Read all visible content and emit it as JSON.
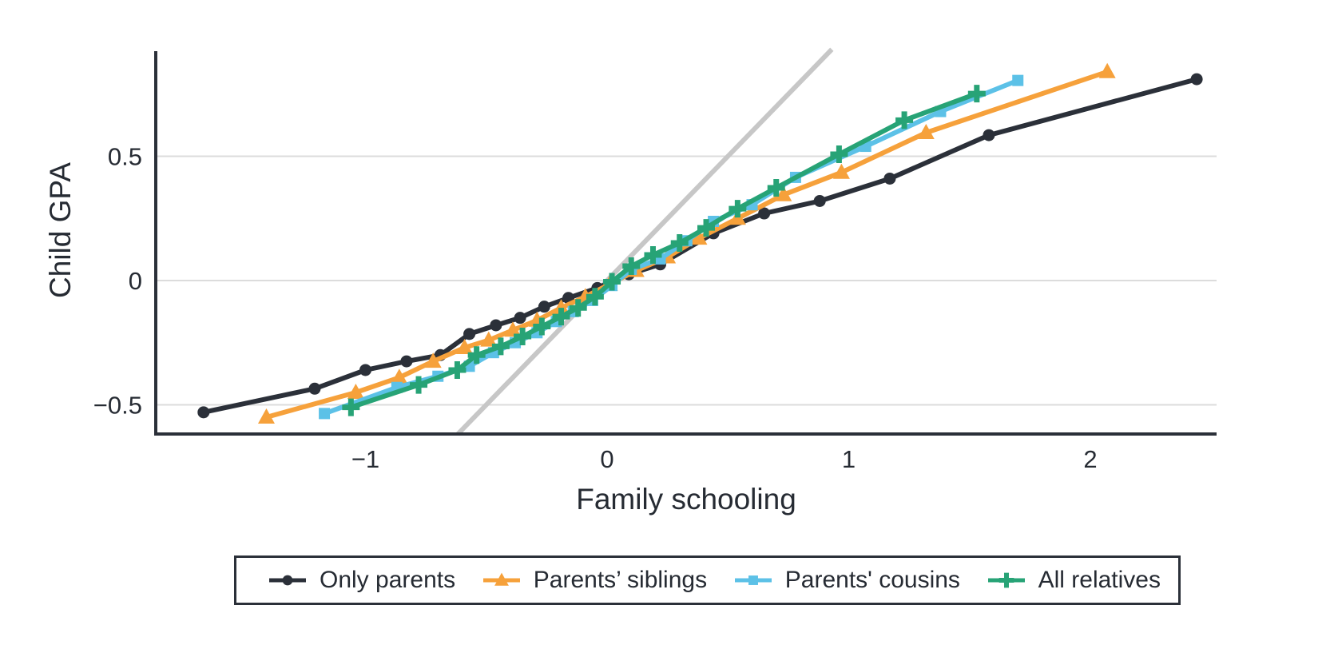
{
  "chart_data": {
    "type": "line",
    "title": "",
    "xlabel": "Family schooling",
    "ylabel": "Child GPA",
    "xlim": [
      -1.87,
      2.52
    ],
    "ylim": [
      -0.62,
      0.92
    ],
    "x_ticks": [
      -1,
      0,
      1,
      2
    ],
    "x_tick_labels": [
      "−1",
      "0",
      "1",
      "2"
    ],
    "y_ticks": [
      0.5,
      0,
      -0.5
    ],
    "y_tick_labels": [
      "0.5",
      "0",
      "−0.5"
    ],
    "grid": "horizontal-only",
    "legend_position": "bottom-outside",
    "colors": {
      "background": "#ffffff",
      "axis": "#2b3039",
      "text": "#262b33",
      "gridline": "#dcdcdc",
      "reference_line": "#c7c7c7"
    },
    "reference_line": {
      "name": "45-degree identity line",
      "from": [
        -0.618,
        -0.618
      ],
      "to": [
        0.93,
        0.93
      ]
    },
    "series": [
      {
        "name": "Only parents",
        "color": "#2b3039",
        "marker": "circle",
        "points": [
          [
            -1.67,
            -0.53
          ],
          [
            -1.21,
            -0.435
          ],
          [
            -1.0,
            -0.36
          ],
          [
            -0.83,
            -0.325
          ],
          [
            -0.69,
            -0.3
          ],
          [
            -0.57,
            -0.215
          ],
          [
            -0.46,
            -0.18
          ],
          [
            -0.36,
            -0.15
          ],
          [
            -0.26,
            -0.105
          ],
          [
            -0.16,
            -0.07
          ],
          [
            -0.04,
            -0.03
          ],
          [
            0.09,
            0.025
          ],
          [
            0.22,
            0.065
          ],
          [
            0.44,
            0.19
          ],
          [
            0.65,
            0.27
          ],
          [
            0.88,
            0.32
          ],
          [
            1.17,
            0.41
          ],
          [
            1.58,
            0.585
          ],
          [
            2.44,
            0.81
          ]
        ]
      },
      {
        "name": "Parents’ siblings",
        "color": "#f6a13b",
        "marker": "triangle",
        "points": [
          [
            -1.41,
            -0.55
          ],
          [
            -1.04,
            -0.45
          ],
          [
            -0.86,
            -0.39
          ],
          [
            -0.72,
            -0.325
          ],
          [
            -0.59,
            -0.27
          ],
          [
            -0.49,
            -0.24
          ],
          [
            -0.39,
            -0.2
          ],
          [
            -0.29,
            -0.16
          ],
          [
            -0.19,
            -0.11
          ],
          [
            -0.09,
            -0.065
          ],
          [
            0.01,
            -0.015
          ],
          [
            0.12,
            0.04
          ],
          [
            0.25,
            0.095
          ],
          [
            0.38,
            0.17
          ],
          [
            0.54,
            0.25
          ],
          [
            0.73,
            0.345
          ],
          [
            0.97,
            0.435
          ],
          [
            1.32,
            0.595
          ],
          [
            2.07,
            0.84
          ]
        ]
      },
      {
        "name": "Parents' cousins",
        "color": "#5cc1e7",
        "marker": "square",
        "points": [
          [
            -1.17,
            -0.535
          ],
          [
            -0.87,
            -0.43
          ],
          [
            -0.7,
            -0.385
          ],
          [
            -0.57,
            -0.345
          ],
          [
            -0.47,
            -0.29
          ],
          [
            -0.38,
            -0.25
          ],
          [
            -0.29,
            -0.21
          ],
          [
            -0.21,
            -0.165
          ],
          [
            -0.14,
            -0.125
          ],
          [
            -0.06,
            -0.08
          ],
          [
            0.02,
            -0.02
          ],
          [
            0.1,
            0.045
          ],
          [
            0.22,
            0.087
          ],
          [
            0.33,
            0.16
          ],
          [
            0.44,
            0.238
          ],
          [
            0.6,
            0.305
          ],
          [
            0.78,
            0.415
          ],
          [
            1.07,
            0.54
          ],
          [
            1.38,
            0.68
          ],
          [
            1.7,
            0.805
          ]
        ]
      },
      {
        "name": "All relatives",
        "color": "#27a376",
        "marker": "plus",
        "points": [
          [
            -1.06,
            -0.51
          ],
          [
            -0.78,
            -0.42
          ],
          [
            -0.62,
            -0.36
          ],
          [
            -0.54,
            -0.3
          ],
          [
            -0.44,
            -0.265
          ],
          [
            -0.35,
            -0.225
          ],
          [
            -0.27,
            -0.185
          ],
          [
            -0.19,
            -0.145
          ],
          [
            -0.12,
            -0.11
          ],
          [
            -0.05,
            -0.065
          ],
          [
            0.02,
            -0.005
          ],
          [
            0.1,
            0.058
          ],
          [
            0.19,
            0.103
          ],
          [
            0.3,
            0.151
          ],
          [
            0.41,
            0.212
          ],
          [
            0.54,
            0.289
          ],
          [
            0.7,
            0.373
          ],
          [
            0.96,
            0.508
          ],
          [
            1.23,
            0.645
          ],
          [
            1.53,
            0.752
          ]
        ]
      }
    ]
  }
}
